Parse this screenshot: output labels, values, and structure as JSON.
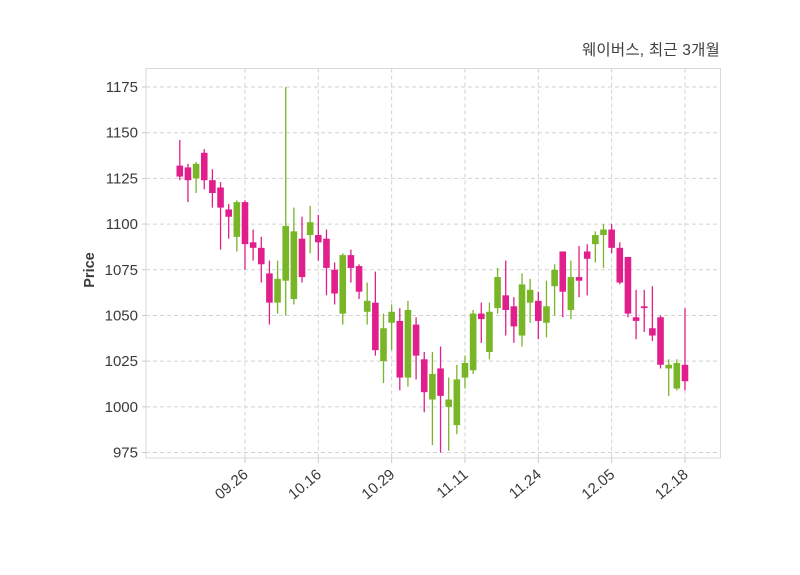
{
  "title": "웨이버스, 최근 3개월",
  "y_axis": {
    "label": "Price",
    "ticks": [
      975,
      1000,
      1025,
      1050,
      1075,
      1100,
      1125,
      1150,
      1175
    ]
  },
  "x_axis": {
    "ticks": [
      {
        "label": "09.26",
        "candle_index": 9
      },
      {
        "label": "10.16",
        "candle_index": 18
      },
      {
        "label": "10.29",
        "candle_index": 27
      },
      {
        "label": "11.11",
        "candle_index": 36
      },
      {
        "label": "11.24",
        "candle_index": 45
      },
      {
        "label": "12.05",
        "candle_index": 54
      },
      {
        "label": "12.18",
        "candle_index": 63
      }
    ]
  },
  "colors": {
    "up": "#78b527",
    "down": "#e01e8c",
    "grid": "#d2d2d2",
    "border": "#d9d9d9",
    "tick_mark": "#c9c9c9",
    "text": "#3a3a3a",
    "background": "#ffffff"
  },
  "chart_data": {
    "type": "candlestick",
    "title": "웨이버스, 최근 3개월",
    "xlabel": "",
    "ylabel": "Price",
    "ylim": [
      972,
      1186
    ],
    "grid": "dashed",
    "n_candles": 63,
    "x_tick_labels": [
      "09.26",
      "10.16",
      "10.29",
      "11.11",
      "11.24",
      "12.05",
      "12.18"
    ],
    "x_tick_candle_indices": [
      9,
      18,
      27,
      36,
      45,
      54,
      63
    ],
    "columns": [
      "open",
      "high",
      "low",
      "close"
    ],
    "candles": [
      [
        1132,
        1146,
        1124,
        1126
      ],
      [
        1131,
        1133,
        1112,
        1124
      ],
      [
        1125,
        1134,
        1117,
        1133
      ],
      [
        1139,
        1141,
        1119,
        1124
      ],
      [
        1124,
        1130,
        1109,
        1117
      ],
      [
        1120,
        1123,
        1086,
        1109
      ],
      [
        1108,
        1111,
        1092,
        1104
      ],
      [
        1093,
        1113,
        1085,
        1112
      ],
      [
        1112,
        1113,
        1075,
        1089
      ],
      [
        1090,
        1097,
        1080,
        1087
      ],
      [
        1087,
        1093,
        1068,
        1078
      ],
      [
        1073,
        1080,
        1045,
        1057
      ],
      [
        1057,
        1080,
        1051,
        1070
      ],
      [
        1069,
        1175,
        1050,
        1099
      ],
      [
        1059,
        1109,
        1056,
        1096
      ],
      [
        1092,
        1104,
        1068,
        1071
      ],
      [
        1094,
        1110,
        1084,
        1101
      ],
      [
        1094,
        1105,
        1080,
        1090
      ],
      [
        1092,
        1097,
        1061,
        1076
      ],
      [
        1075,
        1079,
        1056,
        1062
      ],
      [
        1051,
        1084,
        1045,
        1083
      ],
      [
        1083,
        1086,
        1068,
        1076
      ],
      [
        1077,
        1078,
        1059,
        1063
      ],
      [
        1052,
        1068,
        1045,
        1058
      ],
      [
        1057,
        1074,
        1028,
        1031
      ],
      [
        1025,
        1051,
        1013,
        1043
      ],
      [
        1046,
        1056,
        1031,
        1052
      ],
      [
        1047,
        1054,
        1009,
        1016
      ],
      [
        1016,
        1058,
        1011,
        1053
      ],
      [
        1045,
        1049,
        1015,
        1028
      ],
      [
        1026,
        1030,
        997,
        1008
      ],
      [
        1004,
        1030,
        979,
        1018
      ],
      [
        1021,
        1033,
        975,
        1006
      ],
      [
        1000,
        1016,
        976,
        1004
      ],
      [
        990,
        1023,
        985,
        1015
      ],
      [
        1016,
        1028,
        1010,
        1024
      ],
      [
        1020,
        1053,
        1018,
        1051
      ],
      [
        1051,
        1057,
        1035,
        1048
      ],
      [
        1030,
        1057,
        1026,
        1052
      ],
      [
        1054,
        1076,
        1051,
        1071
      ],
      [
        1061,
        1080,
        1039,
        1053
      ],
      [
        1055,
        1060,
        1035,
        1044
      ],
      [
        1039,
        1073,
        1033,
        1067
      ],
      [
        1057,
        1070,
        1046,
        1064
      ],
      [
        1058,
        1063,
        1037,
        1047
      ],
      [
        1046,
        1069,
        1038,
        1055
      ],
      [
        1066,
        1078,
        1050,
        1075
      ],
      [
        1085,
        1085,
        1049,
        1063
      ],
      [
        1053,
        1080,
        1048,
        1071
      ],
      [
        1071,
        1088,
        1060,
        1069
      ],
      [
        1085,
        1089,
        1061,
        1081
      ],
      [
        1089,
        1096,
        1079,
        1094
      ],
      [
        1094,
        1100,
        1076,
        1097
      ],
      [
        1097,
        1100,
        1084,
        1087
      ],
      [
        1087,
        1090,
        1067,
        1068
      ],
      [
        1082,
        1082,
        1049,
        1051
      ],
      [
        1049,
        1064,
        1037,
        1047
      ],
      [
        1055,
        1064,
        1041,
        1054
      ],
      [
        1043,
        1066,
        1036,
        1039
      ],
      [
        1049,
        1050,
        1021,
        1023
      ],
      [
        1021,
        1026,
        1006,
        1023
      ],
      [
        1010,
        1026,
        1009,
        1024
      ],
      [
        1023,
        1054,
        1009,
        1014
      ]
    ]
  }
}
